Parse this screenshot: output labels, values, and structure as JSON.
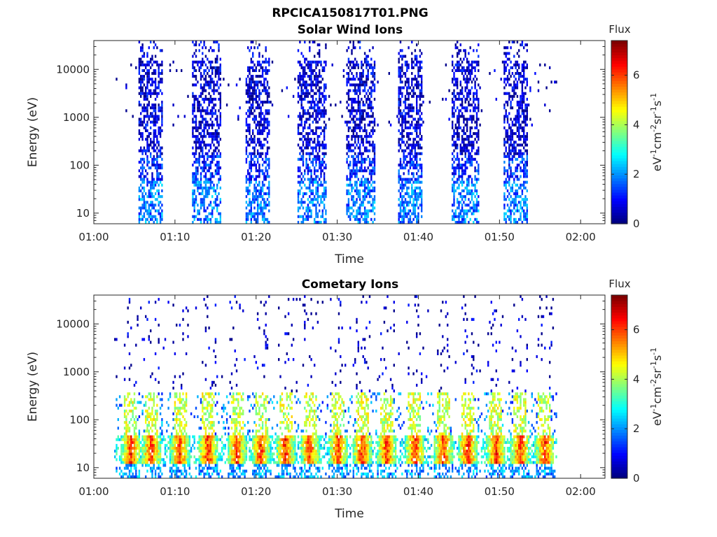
{
  "figure_title": "RPCICA150817T01.PNG",
  "chart_data": [
    {
      "type": "heatmap",
      "id": "solar",
      "title": "Solar Wind Ions",
      "xlabel": "Time",
      "ylabel": "Energy (eV)",
      "x_ticks": [
        "01:00",
        "01:10",
        "01:20",
        "01:30",
        "01:40",
        "01:50",
        "02:00"
      ],
      "x_tick_minutes": [
        0,
        10,
        20,
        30,
        40,
        50,
        60
      ],
      "xlim_minutes": [
        0,
        63
      ],
      "y_ticks": [
        "10",
        "100",
        "1000",
        "10000"
      ],
      "y_tick_values": [
        10,
        100,
        1000,
        10000
      ],
      "ylim": [
        6,
        40000
      ],
      "yscale": "log",
      "colorbar": {
        "label": "Flux",
        "unit_base": "eV",
        "unit_sup1": "-1",
        "unit_cm": "cm",
        "unit_sup2": "-2",
        "unit_sr": "sr",
        "unit_sup3": "-1",
        "unit_s": "s",
        "unit_sup4": "-1",
        "ticks": [
          "0",
          "2",
          "4",
          "6"
        ],
        "tick_values": [
          0,
          2,
          4,
          6
        ],
        "range": [
          0,
          7.4
        ],
        "colormap": "jet"
      },
      "bursts_minutes": [
        [
          5.5,
          8.5
        ],
        [
          12,
          15.5
        ],
        [
          18.5,
          21.5
        ],
        [
          25,
          28.5
        ],
        [
          31,
          34.5
        ],
        [
          37.5,
          40.5
        ],
        [
          44,
          47.5
        ],
        [
          50.5,
          53.5
        ]
      ],
      "scatter_span_minutes": [
        2.5,
        57
      ]
    },
    {
      "type": "heatmap",
      "id": "comet",
      "title": "Cometary Ions",
      "xlabel": "Time",
      "ylabel": "Energy (eV)",
      "x_ticks": [
        "01:00",
        "01:10",
        "01:20",
        "01:30",
        "01:40",
        "01:50",
        "02:00"
      ],
      "x_tick_minutes": [
        0,
        10,
        20,
        30,
        40,
        50,
        60
      ],
      "xlim_minutes": [
        0,
        63
      ],
      "y_ticks": [
        "10",
        "100",
        "1000",
        "10000"
      ],
      "y_tick_values": [
        10,
        100,
        1000,
        10000
      ],
      "ylim": [
        6,
        40000
      ],
      "yscale": "log",
      "colorbar": {
        "label": "Flux",
        "unit_base": "eV",
        "unit_sup1": "-1",
        "unit_cm": "cm",
        "unit_sup2": "-2",
        "unit_sr": "sr",
        "unit_sup3": "-1",
        "unit_s": "s",
        "unit_sup4": "-1",
        "ticks": [
          "0",
          "2",
          "4",
          "6"
        ],
        "tick_values": [
          0,
          2,
          4,
          6
        ],
        "range": [
          0,
          7.4
        ],
        "colormap": "jet"
      },
      "peaks_minutes": [
        4.5,
        7,
        10.5,
        14,
        17.5,
        20.5,
        23.5,
        26.5,
        30,
        33,
        36,
        39.5,
        43,
        46,
        49.5,
        52.5,
        55.5
      ],
      "scatter_span_minutes": [
        2.5,
        57
      ]
    }
  ]
}
